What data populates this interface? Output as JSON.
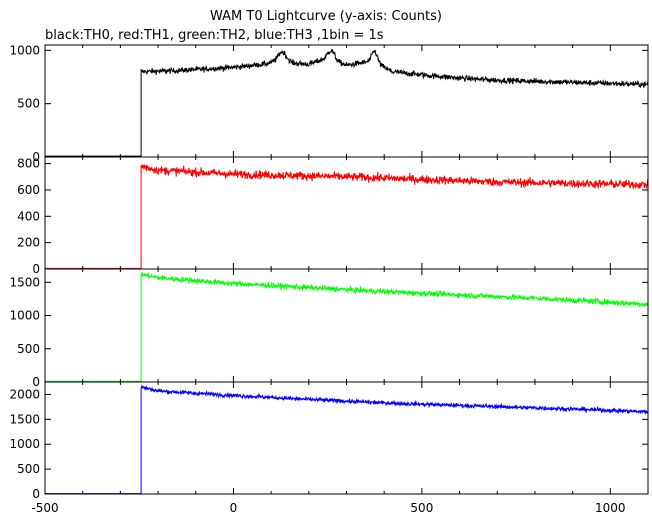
{
  "chart_data": {
    "type": "line",
    "title": "WAM T0 Lightcurve (y-axis: Counts)",
    "subtitle": "black:TH0, red:TH1, green:TH2, blue:TH3 ,1bin = 1s",
    "xlim": [
      -500,
      1100
    ],
    "x_ticks": [
      -500,
      0,
      500,
      1000
    ],
    "x_tick_labels": [
      "-500",
      "0",
      "500",
      "1000"
    ],
    "grid": false,
    "shared_x": {
      "start": -500,
      "step_onset": -245,
      "end": 1100
    },
    "series": [
      {
        "name": "TH0",
        "color": "#000000",
        "ylim": [
          0,
          1050
        ],
        "y_ticks": [
          0,
          500,
          1000
        ],
        "y_tick_labels": [
          "0",
          "500",
          "1000"
        ],
        "pre_level": 8,
        "noise": 45,
        "profile": [
          [
            -245,
            800
          ],
          [
            -150,
            810
          ],
          [
            0,
            840
          ],
          [
            80,
            870
          ],
          [
            120,
            900
          ],
          [
            160,
            880
          ],
          [
            200,
            870
          ],
          [
            250,
            930
          ],
          [
            300,
            860
          ],
          [
            370,
            900
          ],
          [
            420,
            800
          ],
          [
            500,
            770
          ],
          [
            600,
            740
          ],
          [
            700,
            720
          ],
          [
            800,
            710
          ],
          [
            900,
            700
          ],
          [
            1000,
            690
          ],
          [
            1100,
            680
          ]
        ],
        "peaks": [
          {
            "x": 130,
            "height": 90,
            "width": 15
          },
          {
            "x": 260,
            "height": 80,
            "width": 12
          },
          {
            "x": 375,
            "height": 100,
            "width": 10
          }
        ]
      },
      {
        "name": "TH1",
        "color": "#ff0000",
        "ylim": [
          0,
          850
        ],
        "y_ticks": [
          0,
          200,
          400,
          600,
          800
        ],
        "y_tick_labels": [
          "0",
          "200",
          "400",
          "600",
          "800"
        ],
        "pre_level": 5,
        "noise": 55,
        "profile": [
          [
            -245,
            780
          ],
          [
            -200,
            750
          ],
          [
            0,
            720
          ],
          [
            300,
            700
          ],
          [
            500,
            680
          ],
          [
            700,
            660
          ],
          [
            900,
            650
          ],
          [
            1100,
            640
          ]
        ]
      },
      {
        "name": "TH2",
        "color": "#00ff00",
        "ylim": [
          0,
          1700
        ],
        "y_ticks": [
          0,
          500,
          1000,
          1500
        ],
        "y_tick_labels": [
          "0",
          "500",
          "1000",
          "1500"
        ],
        "pre_level": 10,
        "noise": 70,
        "profile": [
          [
            -245,
            1620
          ],
          [
            -200,
            1570
          ],
          [
            0,
            1480
          ],
          [
            200,
            1420
          ],
          [
            400,
            1360
          ],
          [
            600,
            1310
          ],
          [
            800,
            1260
          ],
          [
            1000,
            1200
          ],
          [
            1100,
            1170
          ]
        ]
      },
      {
        "name": "TH3",
        "color": "#0000ff",
        "ylim": [
          0,
          2250
        ],
        "y_ticks": [
          0,
          500,
          1000,
          1500,
          2000
        ],
        "y_tick_labels": [
          "0",
          "500",
          "1000",
          "1500",
          "2000"
        ],
        "pre_level": 8,
        "noise": 70,
        "profile": [
          [
            -245,
            2150
          ],
          [
            -200,
            2070
          ],
          [
            0,
            1980
          ],
          [
            200,
            1900
          ],
          [
            400,
            1830
          ],
          [
            600,
            1780
          ],
          [
            800,
            1730
          ],
          [
            1000,
            1680
          ],
          [
            1100,
            1650
          ]
        ]
      }
    ]
  }
}
